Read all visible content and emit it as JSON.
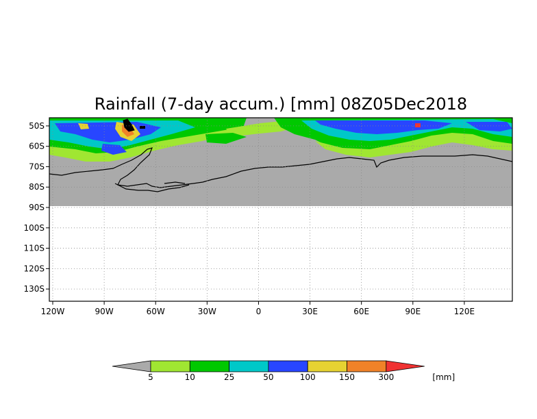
{
  "title": "Rainfall (7-day accum.) [mm] 08Z05Dec2018",
  "map": {
    "lon_range": [
      -122,
      148
    ],
    "lat_range": [
      -136,
      -46
    ],
    "no_data_lat_limit": -90,
    "lat_tick_labels": [
      "50S",
      "60S",
      "70S",
      "80S",
      "90S",
      "100S",
      "110S",
      "120S",
      "130S"
    ],
    "lat_ticks": [
      -50,
      -60,
      -70,
      -80,
      -90,
      -100,
      -110,
      -120,
      -130
    ],
    "lon_tick_labels": [
      "120W",
      "90W",
      "60W",
      "30W",
      "0",
      "30E",
      "60E",
      "90E",
      "120E"
    ],
    "lon_ticks": [
      -120,
      -90,
      -60,
      -30,
      0,
      30,
      60,
      90,
      120
    ],
    "gridlines": "dotted",
    "land_color": "#aaaaaa"
  },
  "colorbar": {
    "unit_label": "[mm]",
    "thresholds": [
      "5",
      "10",
      "25",
      "50",
      "100",
      "150",
      "300"
    ],
    "colors": [
      "#aaaaaa",
      "#a0e632",
      "#00c800",
      "#00c8c8",
      "#2846ff",
      "#e6d232",
      "#f08228",
      "#f03232"
    ]
  }
}
